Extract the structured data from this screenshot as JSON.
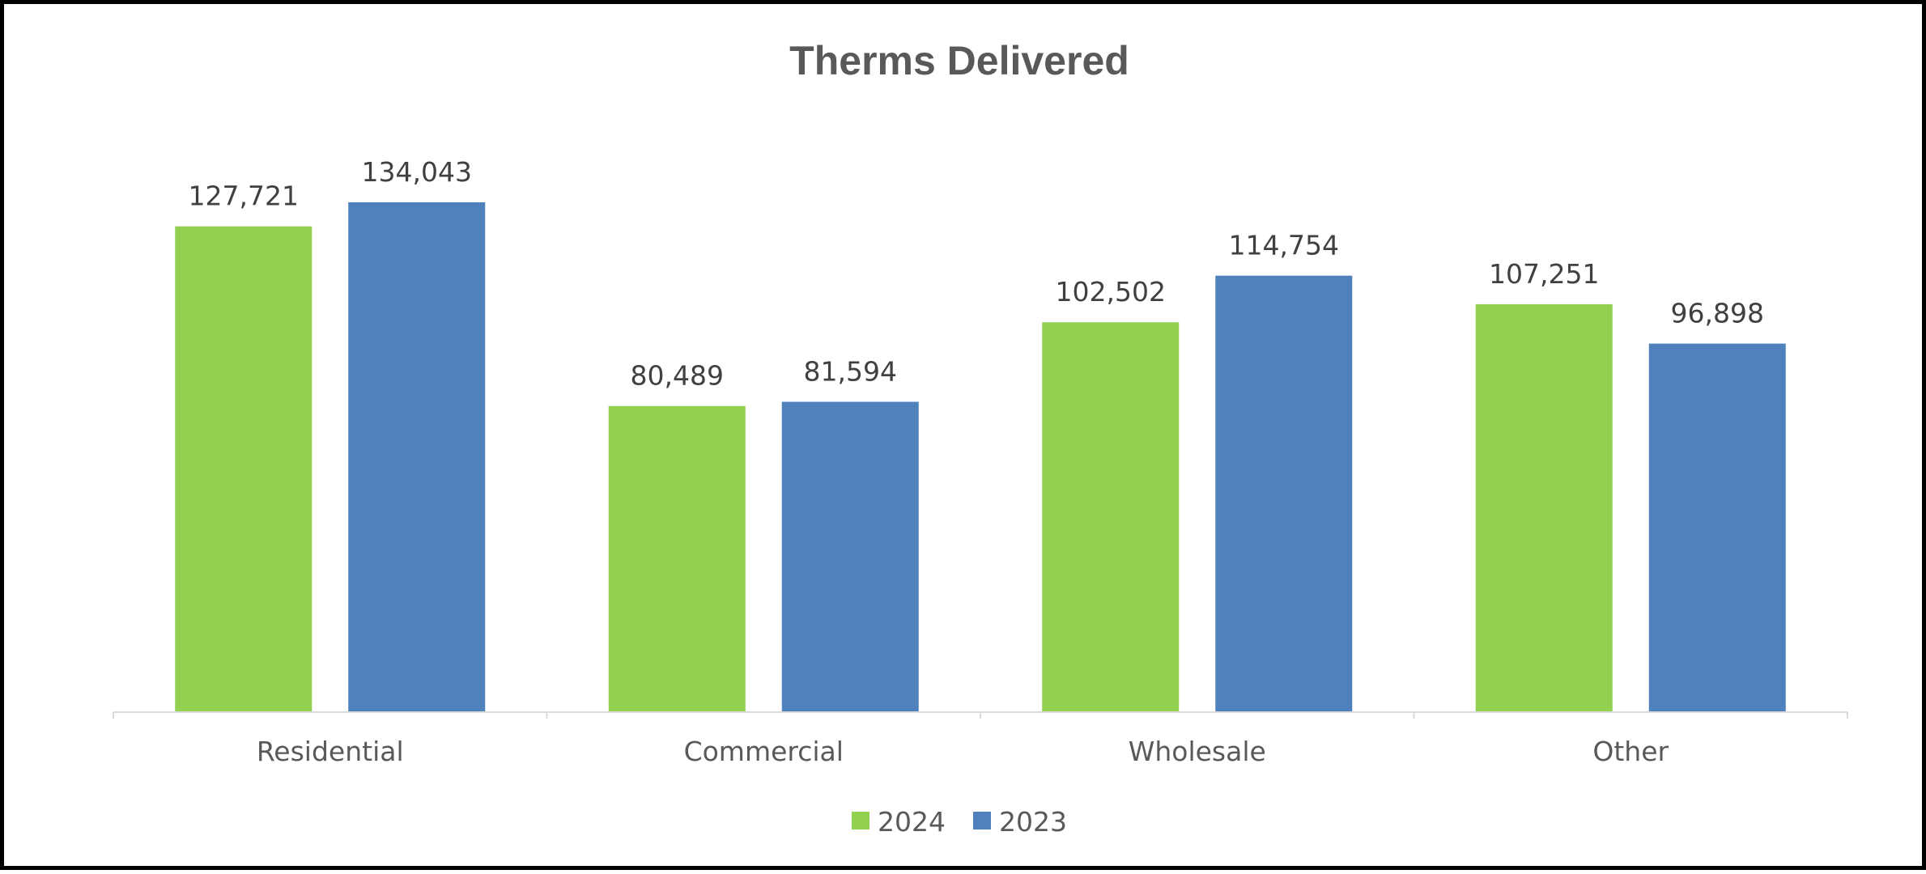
{
  "chart_data": {
    "type": "bar",
    "title": "Therms Delivered",
    "xlabel": "",
    "ylabel": "",
    "categories": [
      "Residential",
      "Commercial",
      "Wholesale",
      "Other"
    ],
    "series": [
      {
        "name": "2024",
        "color": "#92D050",
        "values": [
          127721,
          80489,
          102502,
          107251
        ],
        "labels": [
          "127,721",
          "80,489",
          "102,502",
          "107,251"
        ]
      },
      {
        "name": "2023",
        "color": "#4F81BD",
        "values": [
          134043,
          81594,
          114754,
          96898
        ],
        "labels": [
          "134,043",
          "81,594",
          "114,754",
          "96,898"
        ]
      }
    ],
    "ylim": [
      0,
      140000
    ],
    "grid": false,
    "legend": "bottom-center",
    "axis_color": "#D9D9D9"
  }
}
